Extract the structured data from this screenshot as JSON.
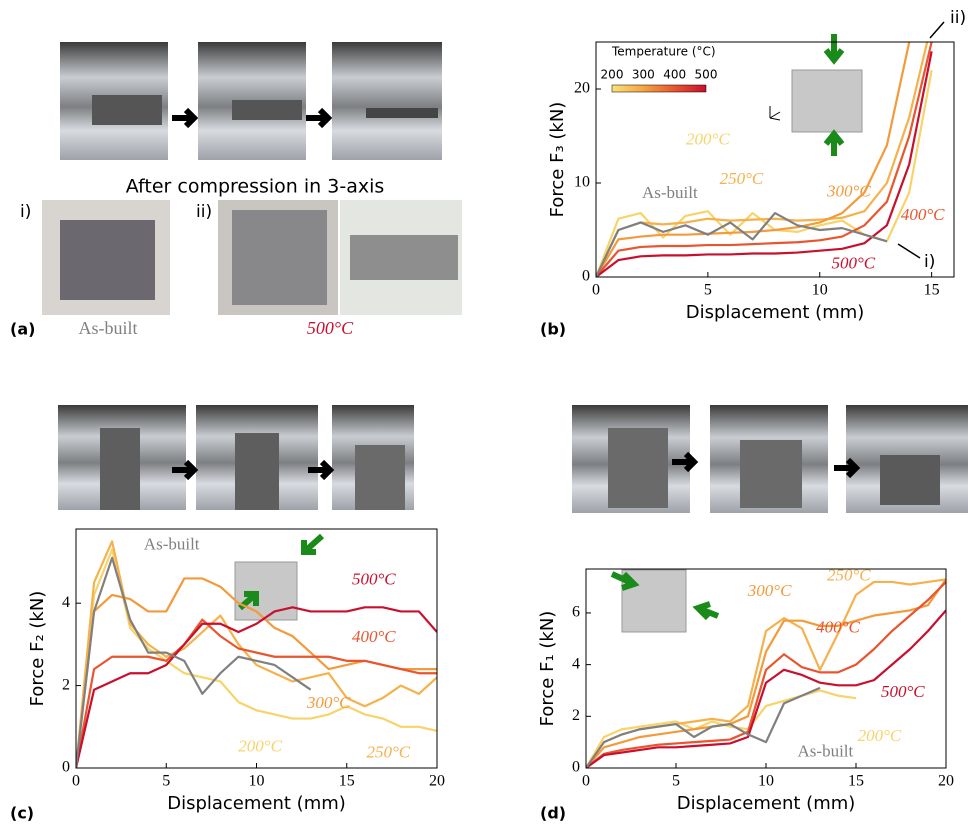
{
  "figure": {
    "panel_labels": [
      "(a)",
      "(b)",
      "(c)",
      "(d)"
    ],
    "panel_a": {
      "caption": "After compression in 3-axis",
      "label_i": "i)",
      "label_ii": "ii)",
      "as_built": "As-built",
      "treated": "500°C"
    }
  },
  "chart_data": [
    {
      "type": "line",
      "xlabel": "Displacement (mm)",
      "ylabel": "Force F₃ (kN)",
      "xlim": [
        0,
        16
      ],
      "ylim": [
        0,
        25
      ],
      "xticks": [
        0,
        5,
        10,
        15
      ],
      "yticks": [
        0,
        10,
        20
      ],
      "annotations": [
        "i)",
        "ii)"
      ],
      "colorbar": {
        "label": "Temperature (°C)",
        "ticks": [
          200,
          300,
          400,
          500
        ],
        "colors": [
          "#fbe27a",
          "#f5a443",
          "#e8552e",
          "#c8102e"
        ]
      },
      "x": [
        0,
        1,
        2,
        3,
        4,
        5,
        6,
        7,
        8,
        9,
        10,
        11,
        12,
        13,
        14,
        15,
        16
      ],
      "series": [
        {
          "name": "200°C",
          "color": "#f8d36a",
          "values": [
            0,
            6.2,
            6.8,
            4.2,
            6.5,
            7.0,
            4.5,
            6.8,
            5.0,
            4.8,
            5.5,
            6.0,
            4.5,
            3.8,
            9,
            22,
            null
          ]
        },
        {
          "name": "250°C",
          "color": "#f5b14c",
          "values": [
            0,
            5.0,
            5.8,
            5.6,
            5.8,
            6.2,
            6.0,
            6.1,
            6.2,
            6.0,
            6.1,
            6.3,
            7.0,
            10,
            17,
            27,
            null
          ]
        },
        {
          "name": "300°C",
          "color": "#f39a3b",
          "values": [
            0,
            4.0,
            4.3,
            4.5,
            4.5,
            4.6,
            4.7,
            4.8,
            5.0,
            5.3,
            5.8,
            6.8,
            9.0,
            14,
            25,
            null,
            null
          ]
        },
        {
          "name": "400°C",
          "color": "#e8552e",
          "values": [
            0,
            2.8,
            3.2,
            3.3,
            3.3,
            3.4,
            3.4,
            3.5,
            3.6,
            3.7,
            3.9,
            4.3,
            5.5,
            8.0,
            15,
            25,
            null
          ]
        },
        {
          "name": "500°C",
          "color": "#c8102e",
          "values": [
            0,
            1.8,
            2.2,
            2.3,
            2.3,
            2.4,
            2.4,
            2.5,
            2.5,
            2.6,
            2.8,
            3.0,
            3.6,
            5.5,
            12,
            24,
            null
          ]
        },
        {
          "name": "As-built",
          "color": "#808080",
          "values": [
            0,
            5.0,
            5.8,
            4.8,
            5.5,
            4.5,
            5.8,
            4.0,
            6.8,
            5.5,
            5.0,
            5.2,
            4.5,
            3.8,
            null,
            null,
            null
          ]
        }
      ]
    },
    {
      "type": "line",
      "xlabel": "Displacement (mm)",
      "ylabel": "Force F₂ (kN)",
      "xlim": [
        0,
        20
      ],
      "ylim": [
        0,
        5.8
      ],
      "xticks": [
        0,
        5,
        10,
        15,
        20
      ],
      "yticks": [
        0,
        2,
        4
      ],
      "x": [
        0,
        1,
        2,
        3,
        4,
        5,
        6,
        7,
        8,
        9,
        10,
        11,
        12,
        13,
        14,
        15,
        16,
        17,
        18,
        19,
        20
      ],
      "series": [
        {
          "name": "200°C",
          "color": "#f8d36a",
          "values": [
            0,
            4.2,
            5.3,
            3.4,
            2.9,
            2.6,
            2.3,
            2.2,
            2.1,
            1.6,
            1.4,
            1.3,
            1.2,
            1.2,
            1.3,
            1.5,
            1.3,
            1.2,
            1.0,
            1.0,
            0.9
          ]
        },
        {
          "name": "250°C",
          "color": "#f5b14c",
          "values": [
            0,
            4.5,
            5.5,
            3.5,
            3.0,
            2.7,
            2.9,
            3.3,
            3.7,
            3.0,
            2.5,
            2.3,
            2.1,
            2.2,
            2.3,
            1.7,
            1.5,
            1.7,
            2.0,
            1.8,
            2.2
          ]
        },
        {
          "name": "300°C",
          "color": "#f39a3b",
          "values": [
            0,
            3.8,
            4.2,
            4.1,
            3.8,
            3.8,
            4.6,
            4.6,
            4.4,
            4.0,
            3.8,
            3.4,
            3.2,
            2.8,
            2.4,
            2.5,
            2.6,
            2.5,
            2.4,
            2.4,
            2.4
          ]
        },
        {
          "name": "400°C",
          "color": "#e8552e",
          "values": [
            0,
            2.4,
            2.7,
            2.7,
            2.7,
            2.6,
            3.0,
            3.6,
            3.2,
            2.9,
            2.8,
            2.7,
            2.7,
            2.7,
            2.7,
            2.6,
            2.6,
            2.5,
            2.4,
            2.3,
            2.3
          ]
        },
        {
          "name": "500°C",
          "color": "#c8102e",
          "values": [
            0,
            1.9,
            2.1,
            2.3,
            2.3,
            2.5,
            3.0,
            3.5,
            3.5,
            3.3,
            3.5,
            3.8,
            3.9,
            3.8,
            3.8,
            3.8,
            3.9,
            3.9,
            3.8,
            3.8,
            3.3
          ]
        },
        {
          "name": "As-built",
          "color": "#808080",
          "values": [
            0,
            3.8,
            5.1,
            3.6,
            2.8,
            2.8,
            2.6,
            1.8,
            2.3,
            2.7,
            2.6,
            2.5,
            2.2,
            1.9,
            null,
            null,
            null,
            null,
            null,
            null,
            null
          ]
        }
      ]
    },
    {
      "type": "line",
      "xlabel": "Displacement (mm)",
      "ylabel": "Force F₁ (kN)",
      "xlim": [
        0,
        20
      ],
      "ylim": [
        0,
        7.7
      ],
      "xticks": [
        0,
        5,
        10,
        15,
        20
      ],
      "yticks": [
        0,
        2,
        4,
        6
      ],
      "x": [
        0,
        1,
        2,
        3,
        4,
        5,
        6,
        7,
        8,
        9,
        10,
        11,
        12,
        13,
        14,
        15,
        16,
        17,
        18,
        19,
        20
      ],
      "series": [
        {
          "name": "200°C",
          "color": "#f8d36a",
          "values": [
            0,
            1.2,
            1.5,
            1.6,
            1.7,
            1.8,
            1.5,
            1.8,
            1.6,
            1.5,
            2.4,
            2.6,
            2.8,
            3.0,
            2.8,
            2.7,
            null,
            null,
            null,
            null,
            null
          ]
        },
        {
          "name": "250°C",
          "color": "#f5b14c",
          "values": [
            0,
            1.0,
            1.3,
            1.5,
            1.6,
            1.7,
            1.8,
            1.9,
            1.8,
            2.4,
            5.3,
            5.8,
            5.4,
            3.8,
            5.2,
            6.7,
            7.2,
            7.2,
            7.1,
            7.2,
            7.3
          ]
        },
        {
          "name": "300°C",
          "color": "#f39a3b",
          "values": [
            0,
            0.8,
            1.0,
            1.2,
            1.3,
            1.4,
            1.5,
            1.6,
            1.7,
            2.0,
            4.5,
            5.7,
            5.7,
            5.5,
            5.5,
            5.7,
            5.9,
            6.0,
            6.1,
            6.3,
            7.3
          ]
        },
        {
          "name": "400°C",
          "color": "#e8552e",
          "values": [
            0,
            0.55,
            0.7,
            0.8,
            0.9,
            0.95,
            1.0,
            1.05,
            1.1,
            1.4,
            3.8,
            4.4,
            3.9,
            3.7,
            3.7,
            4.0,
            4.6,
            5.3,
            5.9,
            6.5,
            7.2
          ]
        },
        {
          "name": "500°C",
          "color": "#c8102e",
          "values": [
            0,
            0.5,
            0.6,
            0.7,
            0.8,
            0.8,
            0.85,
            0.9,
            0.95,
            1.2,
            3.3,
            3.8,
            3.6,
            3.3,
            3.2,
            3.2,
            3.4,
            4.0,
            4.6,
            5.3,
            6.1
          ]
        },
        {
          "name": "As-built",
          "color": "#808080",
          "values": [
            0,
            1.0,
            1.3,
            1.5,
            1.6,
            1.7,
            1.2,
            1.6,
            1.7,
            1.3,
            1.0,
            2.5,
            2.8,
            3.1,
            null,
            null,
            null,
            null,
            null,
            null,
            null
          ]
        }
      ]
    }
  ]
}
